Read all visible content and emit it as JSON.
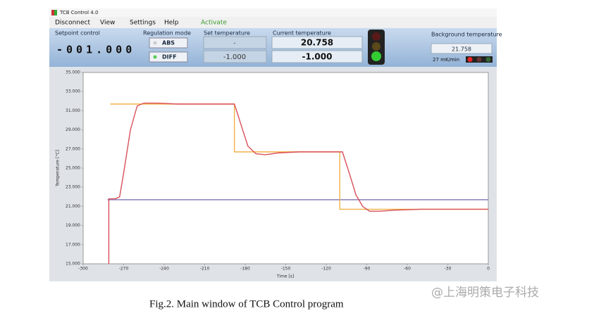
{
  "window": {
    "title": "TCB Control 4.0"
  },
  "menu": [
    "Disconnect",
    "View",
    "Settings",
    "Help",
    "Activate"
  ],
  "panel": {
    "setpoint_label": "Setpoint control",
    "setpoint_value": "-001.000",
    "regulation_label": "Regulation mode",
    "abs": "ABS",
    "diff": "DIFF",
    "set_label": "Set temperature",
    "set_abs": "-",
    "set_diff": "-1.000",
    "current_label": "Current temperature",
    "current_abs": "20.758",
    "current_diff": "-1.000",
    "background_label": "Background temperature",
    "background_value": "21.758",
    "rate": "27 mK/min"
  },
  "chart_data": {
    "type": "line",
    "y_label": "Temperature [°C]",
    "x_label": "Time [s]",
    "xlim": [
      -300,
      0
    ],
    "xticks": [
      -300,
      -270,
      -240,
      -210,
      -180,
      -150,
      -120,
      -90,
      -60,
      -30,
      0
    ],
    "ylim": [
      15,
      35
    ],
    "yticks": [
      {
        "value": 15,
        "label": "15.000"
      },
      {
        "value": 17,
        "label": "17.000"
      },
      {
        "value": 19,
        "label": "19.000"
      },
      {
        "value": 21,
        "label": "21.000"
      },
      {
        "value": 23,
        "label": "23.000"
      },
      {
        "value": 25,
        "label": "25.000"
      },
      {
        "value": 27,
        "label": "27.000"
      },
      {
        "value": 29,
        "label": "29.000"
      },
      {
        "value": 31,
        "label": "31.000"
      },
      {
        "value": 33,
        "label": "33.000"
      },
      {
        "value": 35,
        "label": "35.000"
      }
    ],
    "grid": false,
    "series": [
      {
        "color": "#8a7fb8",
        "x": [
          -282,
          0
        ],
        "values": [
          21.7,
          21.7
        ]
      },
      {
        "color": "#f2b24a",
        "x": [
          -280,
          -188,
          -188,
          -110,
          -110,
          0
        ],
        "values": [
          31.7,
          31.7,
          26.7,
          26.7,
          20.7,
          20.7
        ]
      },
      {
        "color": "#d9505a",
        "x": [
          -281,
          -281,
          -276,
          -273,
          -270,
          -265,
          -260,
          -255,
          -245,
          -230,
          -200,
          -188,
          -183,
          -178,
          -172,
          -165,
          -155,
          -140,
          -120,
          -108,
          -103,
          -98,
          -93,
          -88,
          -80,
          -70,
          -50,
          -30,
          0
        ],
        "values": [
          15,
          21.8,
          21.8,
          22,
          24.5,
          29,
          31.5,
          31.8,
          31.8,
          31.7,
          31.7,
          31.7,
          29.5,
          27.3,
          26.5,
          26.4,
          26.6,
          26.7,
          26.7,
          26.7,
          24.5,
          22.2,
          21,
          20.5,
          20.5,
          20.6,
          20.7,
          20.7,
          20.7
        ]
      }
    ]
  },
  "caption": "Fig.2. Main window of TCB Control program",
  "watermark": "@上海明策电子科技"
}
